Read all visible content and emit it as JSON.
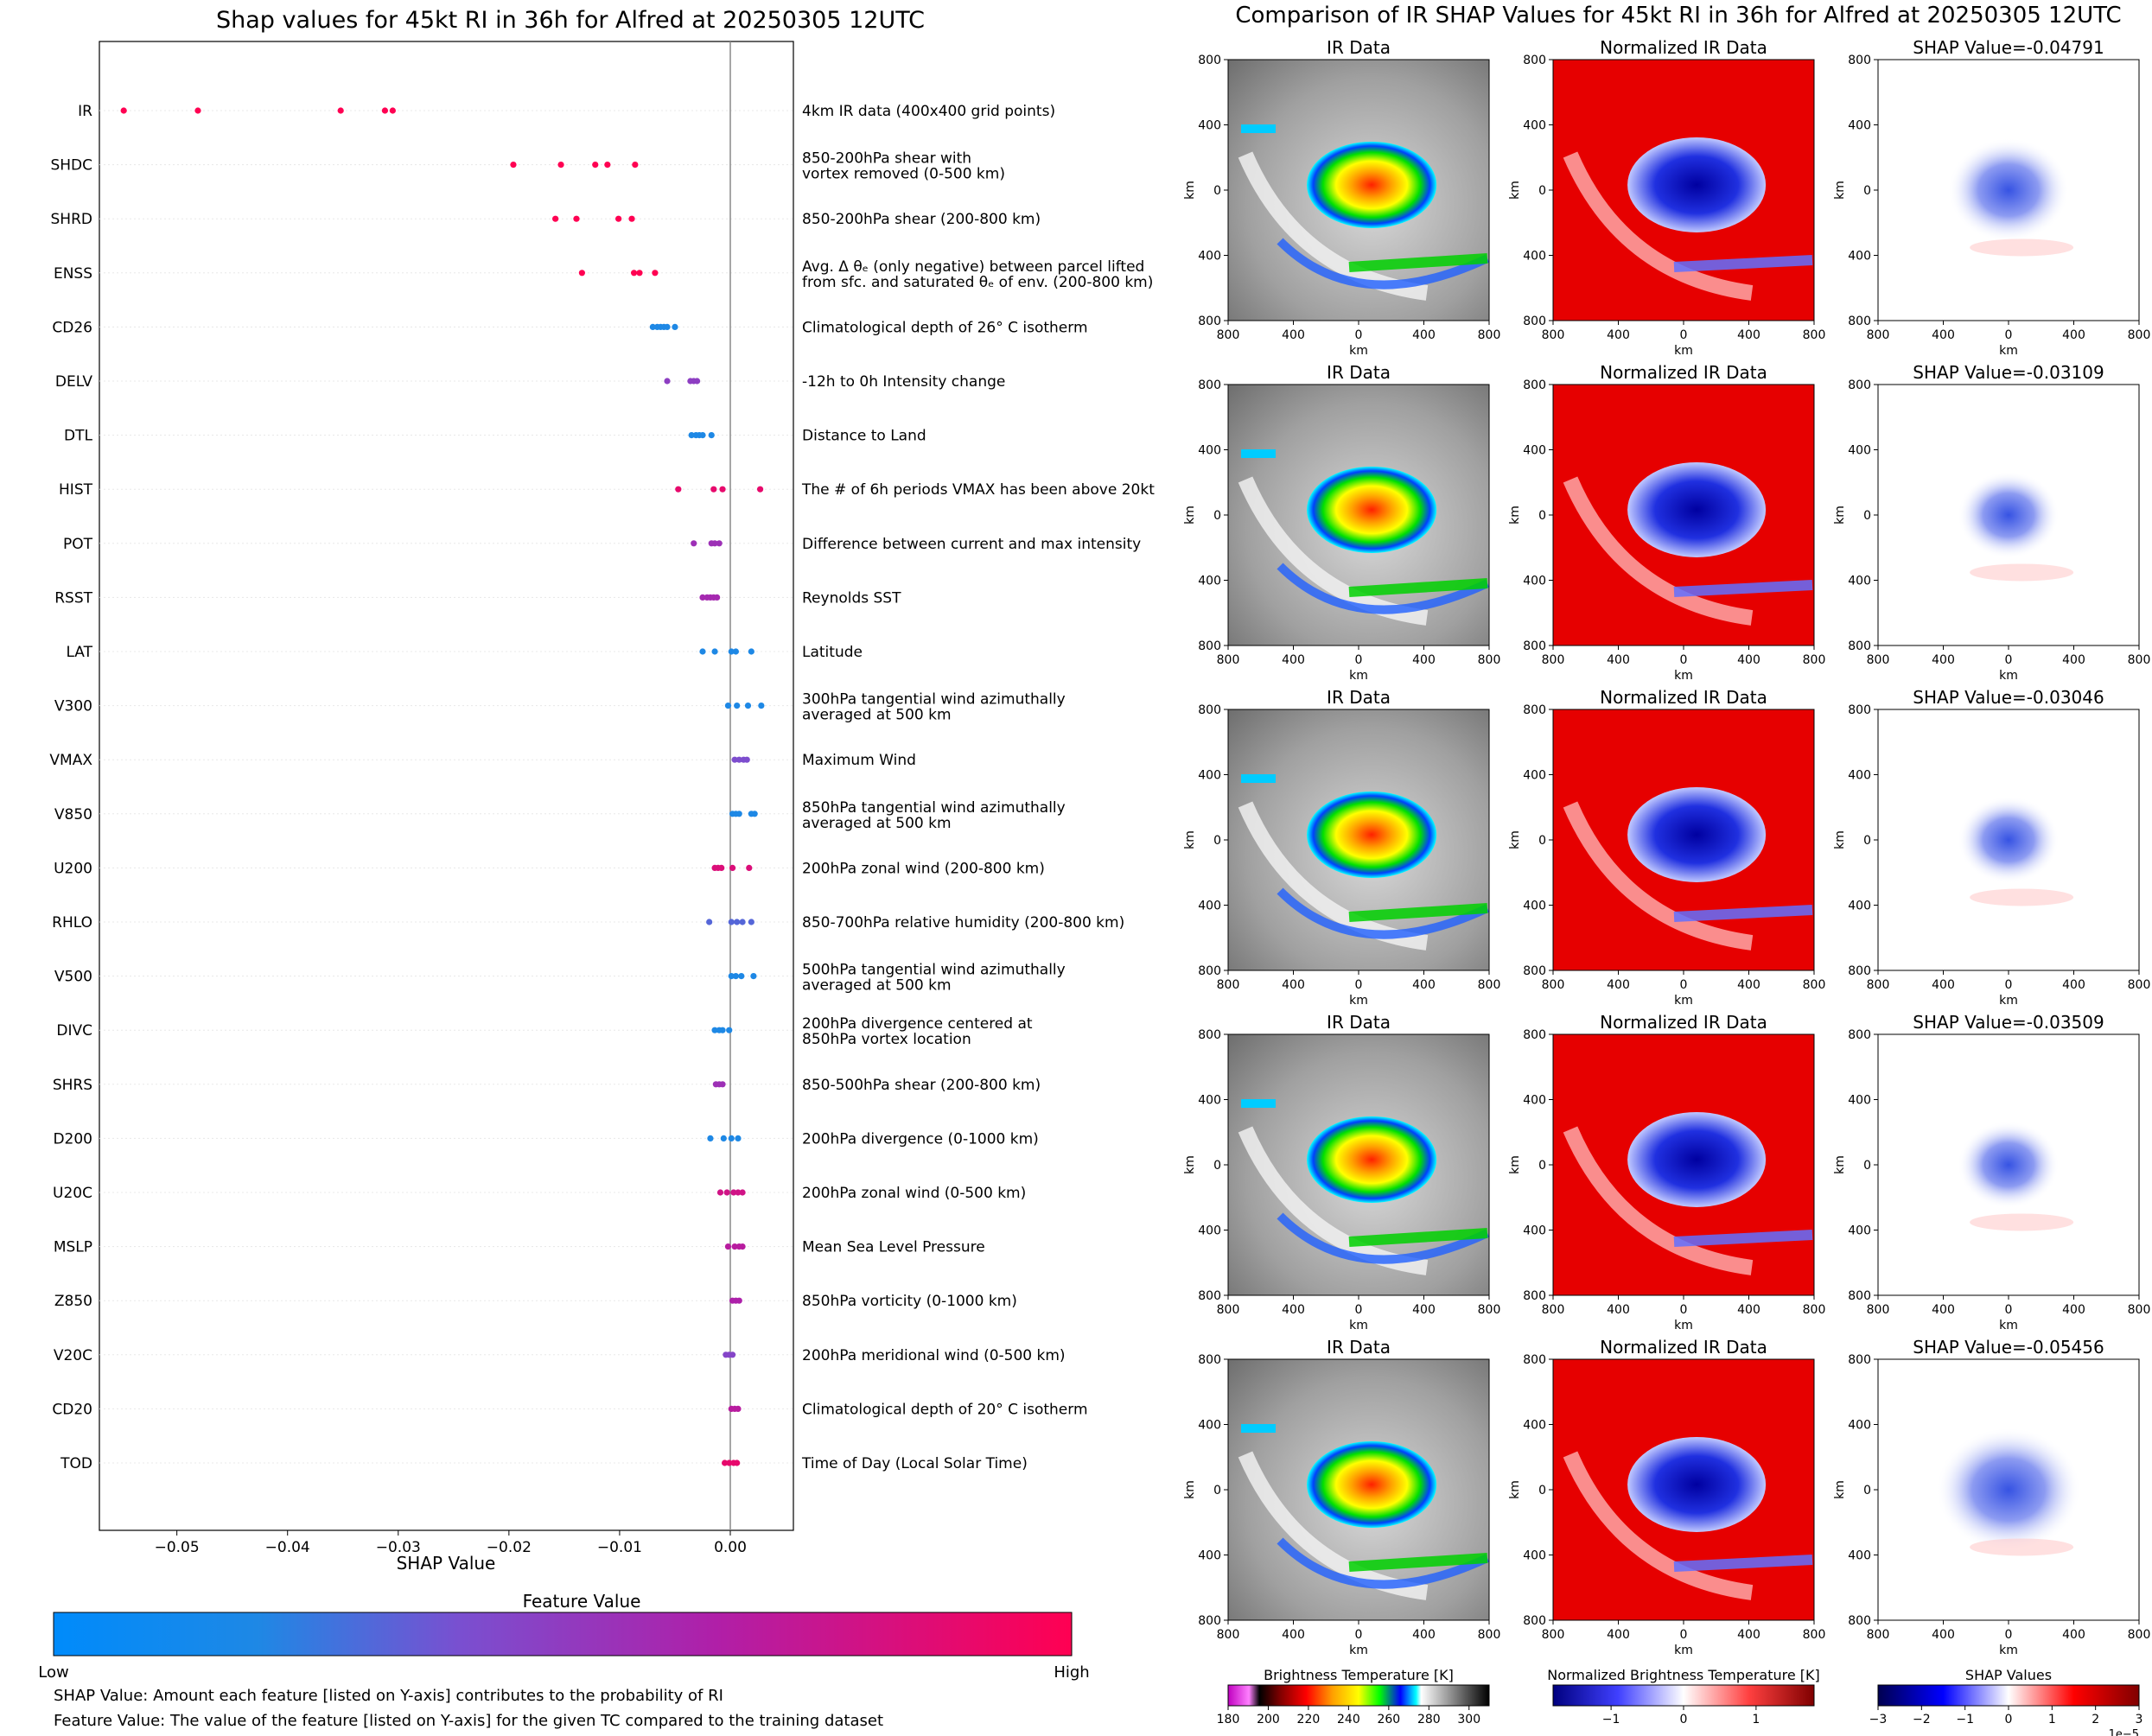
{
  "left_panel": {
    "title": "Shap values for 45kt RI in 36h for Alfred at 20250305 12UTC",
    "colorbar_title": "Feature Value",
    "colorbar_low": "Low",
    "colorbar_high": "High",
    "colorbar_colors": [
      "#1e88e5",
      "#7a4fd0",
      "#b01fa8",
      "#ff0052"
    ],
    "footnote_shap": "SHAP Value: Amount each feature [listed on Y-axis] contributes to the probability of RI",
    "footnote_feature": "Feature Value: The value of the feature [listed on Y-axis] for the given TC compared to the training dataset"
  },
  "right_panel": {
    "title": "Comparison of IR SHAP Values for 45kt RI in 36h for Alfred at 20250305 12UTC",
    "column_titles": [
      "IR Data",
      "Normalized IR Data"
    ],
    "shap_titles": [
      "SHAP Value=-0.04791",
      "SHAP Value=-0.03109",
      "SHAP Value=-0.03046",
      "SHAP Value=-0.03509",
      "SHAP Value=-0.05456"
    ],
    "axis_label": "km",
    "tick_labels": [
      "800",
      "400",
      "0",
      "400",
      "800"
    ],
    "colorbars": [
      {
        "title": "Brightness Temperature [K]",
        "ticks": [
          "180",
          "200",
          "220",
          "240",
          "260",
          "280",
          "300"
        ],
        "range": [
          180,
          310
        ]
      },
      {
        "title": "Normalized Brightness Temperature [K]",
        "ticks": [
          "−1",
          "0",
          "1"
        ],
        "range": [
          -1.8,
          1.8
        ]
      },
      {
        "title": "SHAP Values",
        "ticks": [
          "−3",
          "−2",
          "−1",
          "0",
          "1",
          "2",
          "3"
        ],
        "range": [
          -3,
          3
        ],
        "offset": "1e−5"
      }
    ]
  },
  "chart_data": {
    "type": "scatter",
    "title": "Shap values for 45kt RI in 36h for Alfred at 20250305 12UTC",
    "xlabel": "SHAP Value",
    "xlim": [
      -0.057,
      0.0057
    ],
    "xticks": [
      -0.05,
      -0.04,
      -0.03,
      -0.02,
      -0.01,
      0.0
    ],
    "xtick_labels": [
      "−0.05",
      "−0.04",
      "−0.03",
      "−0.02",
      "−0.01",
      "0.00"
    ],
    "features": [
      {
        "code": "IR",
        "desc": [
          "4km IR data (400x400 grid points)"
        ],
        "color_value": 1.0,
        "x": [
          -0.0548,
          -0.0481,
          -0.0352,
          -0.0312,
          -0.0305
        ]
      },
      {
        "code": "SHDC",
        "desc": [
          "850-200hPa shear with",
          "vortex removed (0-500 km)"
        ],
        "color_value": 1.0,
        "x": [
          -0.0196,
          -0.0153,
          -0.0122,
          -0.0111,
          -0.0086
        ]
      },
      {
        "code": "SHRD",
        "desc": [
          "850-200hPa shear (200-800 km)"
        ],
        "color_value": 1.0,
        "x": [
          -0.0158,
          -0.0139,
          -0.0101,
          -0.0089
        ]
      },
      {
        "code": "ENSS",
        "desc": [
          "Avg. Δ θₑ (only negative) between parcel lifted",
          "from sfc. and saturated θₑ of env. (200-800 km)"
        ],
        "color_value": 1.0,
        "x": [
          -0.0134,
          -0.0087,
          -0.0082,
          -0.0068
        ]
      },
      {
        "code": "CD26",
        "desc": [
          "Climatological depth of 26° C isotherm"
        ],
        "color_value": 0.0,
        "x": [
          -0.007,
          -0.0066,
          -0.0063,
          -0.006,
          -0.0057,
          -0.005
        ]
      },
      {
        "code": "DELV",
        "desc": [
          "-12h to 0h Intensity change"
        ],
        "color_value": 0.45,
        "x": [
          -0.0057,
          -0.0036,
          -0.0033,
          -0.003
        ]
      },
      {
        "code": "DTL",
        "desc": [
          "Distance to Land"
        ],
        "color_value": 0.0,
        "x": [
          -0.0035,
          -0.0031,
          -0.0028,
          -0.0025,
          -0.0017
        ]
      },
      {
        "code": "HIST",
        "desc": [
          "The # of 6h periods VMAX has been above 20kt"
        ],
        "color_value": 0.9,
        "x": [
          -0.0047,
          -0.0015,
          -0.0007,
          0.0027
        ]
      },
      {
        "code": "POT",
        "desc": [
          "Difference between current and max intensity"
        ],
        "color_value": 0.55,
        "x": [
          -0.0033,
          -0.0017,
          -0.0014,
          -0.001
        ]
      },
      {
        "code": "RSST",
        "desc": [
          "Reynolds SST"
        ],
        "color_value": 0.6,
        "x": [
          -0.0025,
          -0.0021,
          -0.0018,
          -0.0015,
          -0.0012
        ]
      },
      {
        "code": "LAT",
        "desc": [
          "Latitude"
        ],
        "color_value": 0.0,
        "x": [
          -0.0025,
          -0.0014,
          0.0001,
          0.0005,
          0.0019
        ]
      },
      {
        "code": "V300",
        "desc": [
          "300hPa tangential wind azimuthally",
          "averaged at 500 km"
        ],
        "color_value": 0.0,
        "x": [
          -0.0002,
          0.0006,
          0.0016,
          0.0028
        ]
      },
      {
        "code": "VMAX",
        "desc": [
          "Maximum Wind"
        ],
        "color_value": 0.35,
        "x": [
          0.0004,
          0.0008,
          0.0012,
          0.0015
        ]
      },
      {
        "code": "V850",
        "desc": [
          "850hPa tangential wind azimuthally",
          "averaged at 500 km"
        ],
        "color_value": 0.0,
        "x": [
          0.0002,
          0.0005,
          0.0008,
          0.0019,
          0.0022
        ]
      },
      {
        "code": "U200",
        "desc": [
          "200hPa zonal wind (200-800 km)"
        ],
        "color_value": 0.85,
        "x": [
          -0.0014,
          -0.0011,
          -0.0008,
          0.0002,
          0.0017
        ]
      },
      {
        "code": "RHLO",
        "desc": [
          "850-700hPa relative humidity (200-800 km)"
        ],
        "color_value": 0.2,
        "x": [
          -0.0019,
          0.0001,
          0.0006,
          0.0011,
          0.0019
        ]
      },
      {
        "code": "V500",
        "desc": [
          "500hPa tangential wind azimuthally",
          "averaged at 500 km"
        ],
        "color_value": 0.0,
        "x": [
          0.0001,
          0.0005,
          0.001,
          0.0021
        ]
      },
      {
        "code": "DIVC",
        "desc": [
          "200hPa divergence centered at",
          "850hPa vortex location"
        ],
        "color_value": 0.0,
        "x": [
          -0.0014,
          -0.001,
          -0.0007,
          -0.0001
        ]
      },
      {
        "code": "SHRS",
        "desc": [
          "850-500hPa shear (200-800 km)"
        ],
        "color_value": 0.55,
        "x": [
          -0.0013,
          -0.001,
          -0.0007
        ]
      },
      {
        "code": "D200",
        "desc": [
          "200hPa divergence (0-1000 km)"
        ],
        "color_value": 0.0,
        "x": [
          -0.0018,
          -0.0006,
          0.0001,
          0.0007
        ]
      },
      {
        "code": "U20C",
        "desc": [
          "200hPa zonal wind (0-500 km)"
        ],
        "color_value": 0.8,
        "x": [
          -0.0009,
          -0.0003,
          0.0003,
          0.0007,
          0.0011
        ]
      },
      {
        "code": "MSLP",
        "desc": [
          "Mean Sea Level Pressure"
        ],
        "color_value": 0.7,
        "x": [
          -0.0002,
          0.0004,
          0.0008,
          0.0011
        ]
      },
      {
        "code": "Z850",
        "desc": [
          "850hPa vorticity (0-1000 km)"
        ],
        "color_value": 0.65,
        "x": [
          0.0002,
          0.0005,
          0.0008
        ]
      },
      {
        "code": "V20C",
        "desc": [
          "200hPa meridional wind (0-500 km)"
        ],
        "color_value": 0.4,
        "x": [
          -0.0004,
          -0.0001,
          0.0002
        ]
      },
      {
        "code": "CD20",
        "desc": [
          "Climatological depth of 20° C isotherm"
        ],
        "color_value": 0.7,
        "x": [
          0.0001,
          0.0004,
          0.0007
        ]
      },
      {
        "code": "TOD",
        "desc": [
          "Time of Day (Local Solar Time)"
        ],
        "color_value": 0.9,
        "x": [
          -0.0005,
          -0.0001,
          0.0003,
          0.0006
        ]
      }
    ]
  }
}
